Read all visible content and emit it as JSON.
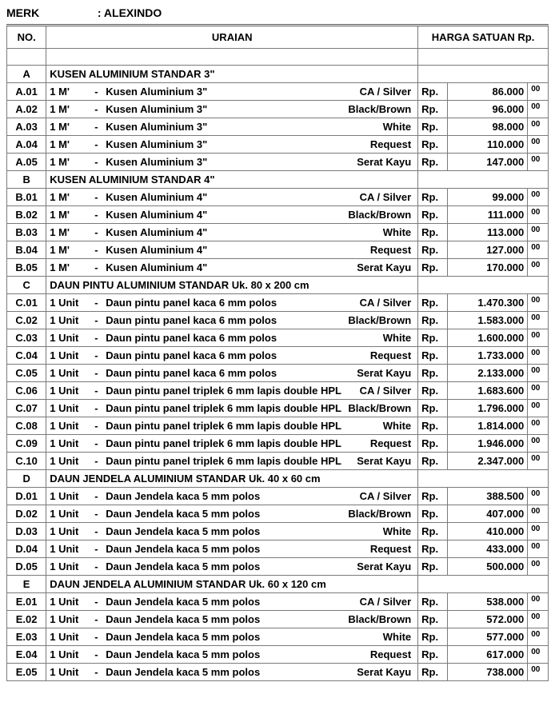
{
  "merk_label": "MERK",
  "merk_value": ": ALEXINDO",
  "columns": {
    "no": "NO.",
    "uraian": "URAIAN",
    "harga": "HARGA SATUAN Rp."
  },
  "currency": "Rp.",
  "cents": "00",
  "sections": [
    {
      "code": "A",
      "title": "KUSEN ALUMINIUM STANDAR 3\"",
      "rows": [
        {
          "no": "A.01",
          "unit": "1 M'",
          "desc": "Kusen Aluminium 3\"",
          "variant": "CA / Silver",
          "amount": "86.000"
        },
        {
          "no": "A.02",
          "unit": "1 M'",
          "desc": "Kusen Aluminium 3\"",
          "variant": "Black/Brown",
          "amount": "96.000"
        },
        {
          "no": "A.03",
          "unit": "1 M'",
          "desc": "Kusen Aluminium 3\"",
          "variant": "White",
          "amount": "98.000"
        },
        {
          "no": "A.04",
          "unit": "1 M'",
          "desc": "Kusen Aluminium 3\"",
          "variant": "Request",
          "amount": "110.000"
        },
        {
          "no": "A.05",
          "unit": "1 M'",
          "desc": "Kusen Aluminium 3\"",
          "variant": "Serat Kayu",
          "amount": "147.000"
        }
      ]
    },
    {
      "code": "B",
      "title": "KUSEN ALUMINIUM STANDAR 4\"",
      "rows": [
        {
          "no": "B.01",
          "unit": "1 M'",
          "desc": "Kusen Aluminium 4\"",
          "variant": "CA / Silver",
          "amount": "99.000"
        },
        {
          "no": "B.02",
          "unit": "1 M'",
          "desc": "Kusen Aluminium 4\"",
          "variant": "Black/Brown",
          "amount": "111.000"
        },
        {
          "no": "B.03",
          "unit": "1 M'",
          "desc": "Kusen Aluminium 4\"",
          "variant": "White",
          "amount": "113.000"
        },
        {
          "no": "B.04",
          "unit": "1 M'",
          "desc": "Kusen Aluminium 4\"",
          "variant": "Request",
          "amount": "127.000"
        },
        {
          "no": "B.05",
          "unit": "1 M'",
          "desc": "Kusen Aluminium 4\"",
          "variant": "Serat Kayu",
          "amount": "170.000"
        }
      ]
    },
    {
      "code": "C",
      "title": "DAUN PINTU ALUMINIUM STANDAR Uk. 80 x 200 cm",
      "rows": [
        {
          "no": "C.01",
          "unit": "1 Unit",
          "desc": "Daun pintu panel kaca 6 mm polos",
          "variant": "CA / Silver",
          "amount": "1.470.300"
        },
        {
          "no": "C.02",
          "unit": "1 Unit",
          "desc": "Daun pintu panel kaca 6 mm polos",
          "variant": "Black/Brown",
          "amount": "1.583.000"
        },
        {
          "no": "C.03",
          "unit": "1 Unit",
          "desc": "Daun pintu panel kaca 6 mm polos",
          "variant": "White",
          "amount": "1.600.000"
        },
        {
          "no": "C.04",
          "unit": "1 Unit",
          "desc": "Daun pintu panel kaca 6 mm polos",
          "variant": "Request",
          "amount": "1.733.000"
        },
        {
          "no": "C.05",
          "unit": "1 Unit",
          "desc": "Daun pintu panel kaca 6 mm polos",
          "variant": "Serat Kayu",
          "amount": "2.133.000"
        },
        {
          "no": "C.06",
          "unit": "1 Unit",
          "desc": "Daun pintu panel triplek 6 mm lapis double HPL",
          "variant": "CA / Silver",
          "amount": "1.683.600"
        },
        {
          "no": "C.07",
          "unit": "1 Unit",
          "desc": "Daun pintu panel triplek 6 mm lapis double HPL",
          "variant": "Black/Brown",
          "amount": "1.796.000"
        },
        {
          "no": "C.08",
          "unit": "1 Unit",
          "desc": "Daun pintu panel triplek 6 mm lapis double HPL",
          "variant": "White",
          "amount": "1.814.000"
        },
        {
          "no": "C.09",
          "unit": "1 Unit",
          "desc": "Daun pintu panel triplek 6 mm lapis double HPL",
          "variant": "Request",
          "amount": "1.946.000"
        },
        {
          "no": "C.10",
          "unit": "1 Unit",
          "desc": "Daun pintu panel triplek 6 mm lapis double HPL",
          "variant": "Serat Kayu",
          "amount": "2.347.000"
        }
      ]
    },
    {
      "code": "D",
      "title": "DAUN JENDELA ALUMINIUM STANDAR Uk. 40 x 60 cm",
      "rows": [
        {
          "no": "D.01",
          "unit": "1 Unit",
          "desc": "Daun Jendela kaca 5 mm polos",
          "variant": "CA / Silver",
          "amount": "388.500"
        },
        {
          "no": "D.02",
          "unit": "1 Unit",
          "desc": "Daun Jendela kaca 5 mm polos",
          "variant": "Black/Brown",
          "amount": "407.000"
        },
        {
          "no": "D.03",
          "unit": "1 Unit",
          "desc": "Daun Jendela kaca 5 mm polos",
          "variant": "White",
          "amount": "410.000"
        },
        {
          "no": "D.04",
          "unit": "1 Unit",
          "desc": "Daun Jendela kaca 5 mm polos",
          "variant": "Request",
          "amount": "433.000"
        },
        {
          "no": "D.05",
          "unit": "1 Unit",
          "desc": "Daun Jendela kaca 5 mm polos",
          "variant": "Serat Kayu",
          "amount": "500.000"
        }
      ]
    },
    {
      "code": "E",
      "title": "DAUN JENDELA ALUMINIUM STANDAR Uk. 60 x 120 cm",
      "rows": [
        {
          "no": "E.01",
          "unit": "1 Unit",
          "desc": "Daun Jendela kaca 5 mm polos",
          "variant": "CA / Silver",
          "amount": "538.000"
        },
        {
          "no": "E.02",
          "unit": "1 Unit",
          "desc": "Daun Jendela kaca 5 mm polos",
          "variant": "Black/Brown",
          "amount": "572.000"
        },
        {
          "no": "E.03",
          "unit": "1 Unit",
          "desc": "Daun Jendela kaca 5 mm polos",
          "variant": "White",
          "amount": "577.000"
        },
        {
          "no": "E.04",
          "unit": "1 Unit",
          "desc": "Daun Jendela kaca 5 mm polos",
          "variant": "Request",
          "amount": "617.000"
        },
        {
          "no": "E.05",
          "unit": "1 Unit",
          "desc": "Daun Jendela kaca 5 mm polos",
          "variant": "Serat Kayu",
          "amount": "738.000"
        }
      ]
    }
  ]
}
